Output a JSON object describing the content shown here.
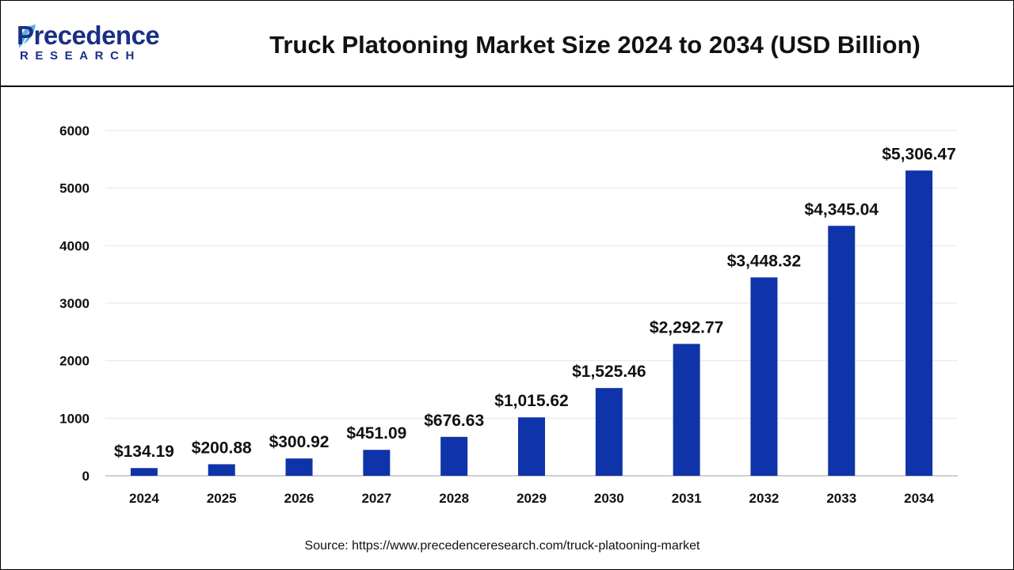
{
  "brand": {
    "name": "Precedence",
    "sub": "RESEARCH",
    "color": "#1b2f86"
  },
  "title": "Truck Platooning Market Size 2024 to 2034 (USD Billion)",
  "source": "Source: https://www.precedenceresearch.com/truck-platooning-market",
  "chart_data": {
    "type": "bar",
    "categories": [
      "2024",
      "2025",
      "2026",
      "2027",
      "2028",
      "2029",
      "2030",
      "2031",
      "2032",
      "2033",
      "2034"
    ],
    "values": [
      134.19,
      200.88,
      300.92,
      451.09,
      676.63,
      1015.62,
      1525.46,
      2292.77,
      3448.32,
      4345.04,
      5306.47
    ],
    "data_labels": [
      "$134.19",
      "$200.88",
      "$300.92",
      "$451.09",
      "$676.63",
      "$1,015.62",
      "$1,525.46",
      "$2,292.77",
      "$3,448.32",
      "$4,345.04",
      "$5,306.47"
    ],
    "y_ticks": [
      "0",
      "1000",
      "2000",
      "3000",
      "4000",
      "5000",
      "6000"
    ],
    "ylim": [
      0,
      6000
    ],
    "grid": true,
    "bar_color": "#0f33a8"
  }
}
